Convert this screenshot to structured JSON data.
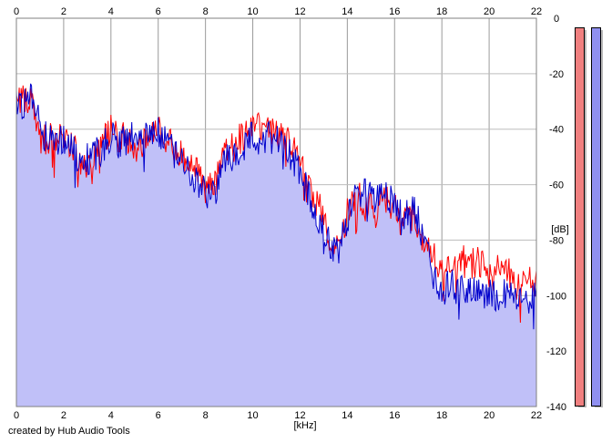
{
  "credit": "created by Hub Audio Tools",
  "chart_data": {
    "type": "line",
    "title": "",
    "xlabel": "[kHz]",
    "ylabel": "[dB]",
    "xlim": [
      0,
      22
    ],
    "ylim": [
      -140,
      0
    ],
    "x_ticks": [
      "0",
      "2",
      "4",
      "6",
      "8",
      "10",
      "12",
      "14",
      "16",
      "18",
      "20",
      "22"
    ],
    "y_ticks": [
      "0",
      "-20",
      "-40",
      "-60",
      "-80",
      "-100",
      "-120",
      "-140"
    ],
    "grid": true,
    "colors": {
      "fill": "#c0c0f8",
      "red": "#ff0000",
      "blue": "#0000cc",
      "grid": "#9a9a9a"
    },
    "series": [
      {
        "color": "#ff0000",
        "x": [
          0,
          0.3,
          0.6,
          0.9,
          1.2,
          1.6,
          2,
          2.4,
          2.8,
          3.2,
          3.6,
          4,
          4.4,
          4.8,
          5.2,
          5.6,
          6,
          6.4,
          6.8,
          7.2,
          7.6,
          8,
          8.4,
          8.8,
          9.2,
          9.6,
          10,
          10.4,
          10.8,
          11.2,
          11.6,
          12,
          12.4,
          12.8,
          13.2,
          13.6,
          14,
          14.4,
          14.8,
          15.2,
          15.6,
          16,
          16.4,
          16.8,
          17.2,
          17.6,
          18,
          18.4,
          18.8,
          19.2,
          19.6,
          20,
          20.4,
          20.8,
          21.2,
          21.6,
          22
        ],
        "y": [
          -30,
          -28,
          -30,
          -38,
          -43,
          -44,
          -41,
          -46,
          -54,
          -50,
          -45,
          -40,
          -43,
          -44,
          -47,
          -40,
          -39,
          -45,
          -48,
          -50,
          -55,
          -62,
          -60,
          -50,
          -46,
          -42,
          -38,
          -41,
          -40,
          -42,
          -46,
          -52,
          -60,
          -68,
          -78,
          -82,
          -70,
          -64,
          -68,
          -69,
          -64,
          -68,
          -75,
          -70,
          -82,
          -86,
          -89,
          -90,
          -87,
          -89,
          -88,
          -91,
          -90,
          -92,
          -93,
          -95,
          -96
        ]
      },
      {
        "color": "#0000cc",
        "x": [
          0,
          0.3,
          0.6,
          0.9,
          1.2,
          1.6,
          2,
          2.4,
          2.8,
          3.2,
          3.6,
          4,
          4.4,
          4.8,
          5.2,
          5.6,
          6,
          6.4,
          6.8,
          7.2,
          7.6,
          8,
          8.4,
          8.8,
          9.2,
          9.6,
          10,
          10.4,
          10.8,
          11.2,
          11.6,
          12,
          12.4,
          12.8,
          13.2,
          13.6,
          14,
          14.4,
          14.8,
          15.2,
          15.6,
          16,
          16.4,
          16.8,
          17.2,
          17.6,
          18,
          18.4,
          18.8,
          19.2,
          19.6,
          20,
          20.4,
          20.8,
          21.2,
          21.6,
          22
        ],
        "y": [
          -32,
          -30,
          -27,
          -35,
          -42,
          -43,
          -43,
          -48,
          -52,
          -50,
          -47,
          -43,
          -45,
          -43,
          -45,
          -42,
          -41,
          -44,
          -50,
          -52,
          -58,
          -64,
          -62,
          -52,
          -50,
          -46,
          -42,
          -44,
          -43,
          -46,
          -49,
          -56,
          -65,
          -72,
          -80,
          -86,
          -72,
          -62,
          -64,
          -65,
          -63,
          -66,
          -72,
          -68,
          -78,
          -92,
          -98,
          -96,
          -99,
          -97,
          -100,
          -98,
          -101,
          -99,
          -100,
          -102,
          -101
        ]
      }
    ]
  },
  "meters": [
    {
      "channel": "left",
      "color": "#f08080"
    },
    {
      "channel": "right",
      "color": "#9090f0"
    }
  ]
}
